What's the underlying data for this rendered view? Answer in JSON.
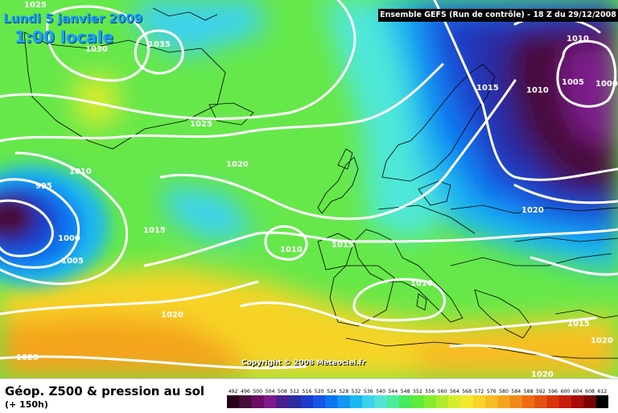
{
  "date_label": "Lundi 5 janvier 2009",
  "time_label": "1:00 locale",
  "run_label": "Ensemble GEFS (Run de contrôle)  -  18 Z du 29/12/2008",
  "copyright": "Copyright © 2008 Meteociel.fr",
  "map_title": "Géop. Z500 & pression au sol",
  "forecast_hour": "(+ 150h)",
  "isobars": [
    {
      "name": "isobar-label-1025",
      "text": "1025"
    },
    {
      "name": "isobar-label-1030",
      "text": "1030"
    },
    {
      "name": "isobar-label-1035",
      "text": "1035"
    },
    {
      "name": "isobar-label-1025",
      "text": "1025"
    },
    {
      "name": "isobar-label-1010",
      "text": "1010"
    },
    {
      "name": "isobar-label-995",
      "text": "995"
    },
    {
      "name": "isobar-label-1020",
      "text": "1020"
    },
    {
      "name": "isobar-label-1015",
      "text": "1015"
    },
    {
      "name": "isobar-label-1000",
      "text": "1000"
    },
    {
      "name": "isobar-label-1005",
      "text": "1005"
    },
    {
      "name": "isobar-label-1010",
      "text": "1010"
    },
    {
      "name": "isobar-label-1015",
      "text": "1015"
    },
    {
      "name": "isobar-label-1020",
      "text": "1020"
    },
    {
      "name": "isobar-label-1025",
      "text": "1025"
    },
    {
      "name": "isobar-label-1010",
      "text": "1010"
    },
    {
      "name": "isobar-label-1015",
      "text": "1015"
    },
    {
      "name": "isobar-label-1010",
      "text": "1010"
    },
    {
      "name": "isobar-label-1005",
      "text": "1005"
    },
    {
      "name": "isobar-label-1000",
      "text": "1000"
    },
    {
      "name": "isobar-label-1015",
      "text": "1015"
    },
    {
      "name": "isobar-label-1020",
      "text": "1020"
    },
    {
      "name": "isobar-label-1010",
      "text": "1010"
    },
    {
      "name": "isobar-label-1015",
      "text": "1015"
    },
    {
      "name": "isobar-label-1020",
      "text": "1020"
    },
    {
      "name": "isobar-label-1020",
      "text": "1020"
    }
  ],
  "legend": {
    "values": [
      "492",
      "496",
      "500",
      "504",
      "508",
      "512",
      "516",
      "520",
      "524",
      "528",
      "532",
      "536",
      "540",
      "544",
      "548",
      "552",
      "556",
      "560",
      "564",
      "568",
      "572",
      "576",
      "580",
      "584",
      "588",
      "592",
      "596",
      "600",
      "604",
      "608",
      "612"
    ],
    "colors": [
      "#2a0018",
      "#470a3a",
      "#6a0c60",
      "#7c1a8a",
      "#4a1f8c",
      "#2a2ca0",
      "#1a3cc8",
      "#1554e6",
      "#0c74f0",
      "#1496f0",
      "#1ab8f0",
      "#3cd2ee",
      "#54e4d6",
      "#4cec9a",
      "#48ea5e",
      "#5cec3a",
      "#86ec2e",
      "#b0ec2e",
      "#d8ec2e",
      "#f4e82c",
      "#f8d428",
      "#f8bc24",
      "#f4a41e",
      "#f08a18",
      "#ec6c14",
      "#e45010",
      "#d8340c",
      "#c81c0a",
      "#a80c08",
      "#780404",
      "#000000"
    ]
  },
  "colors": {
    "isobar": "#ffffff",
    "coastline": "#000000",
    "label_text": "#ffffff",
    "date_text": "#1aa0ff"
  }
}
